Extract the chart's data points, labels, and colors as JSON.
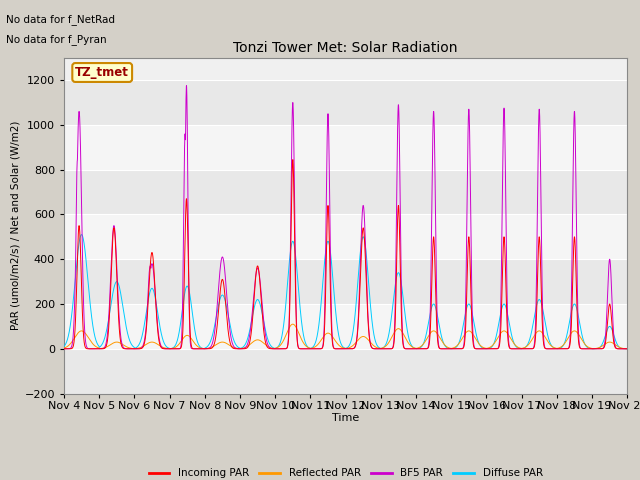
{
  "title": "Tonzi Tower Met: Solar Radiation",
  "xlabel": "Time",
  "ylabel": "PAR (umol/m2/s) / Net and Solar (W/m2)",
  "ylim": [
    -200,
    1300
  ],
  "yticks": [
    -200,
    0,
    200,
    400,
    600,
    800,
    1000,
    1200
  ],
  "annotation_lines": [
    "No data for f_NetRad",
    "No data for f_Pyran"
  ],
  "box_label": "TZ_tmet",
  "legend": [
    "Incoming PAR",
    "Reflected PAR",
    "BF5 PAR",
    "Diffuse PAR"
  ],
  "legend_colors": [
    "#ff0000",
    "#ff9900",
    "#cc00cc",
    "#00ccff"
  ],
  "plot_bg_light": "#f0f0f0",
  "plot_bg_dark": "#e0e0e0",
  "n_days": 16,
  "start_day": 4,
  "bf5_peaks": [
    1060,
    550,
    380,
    1175,
    410,
    360,
    1100,
    1050,
    640,
    1090,
    1060,
    1070,
    1075,
    1070,
    1060,
    400
  ],
  "incoming_peaks": [
    550,
    540,
    430,
    670,
    310,
    370,
    845,
    640,
    540,
    640,
    500,
    500,
    500,
    500,
    500,
    200
  ],
  "diffuse_peaks": [
    510,
    300,
    270,
    280,
    240,
    220,
    480,
    480,
    500,
    340,
    200,
    200,
    200,
    220,
    200,
    100
  ],
  "reflected_peaks": [
    80,
    30,
    30,
    60,
    30,
    40,
    110,
    70,
    55,
    90,
    80,
    80,
    80,
    80,
    80,
    30
  ],
  "bf5_widths": [
    0.07,
    0.09,
    0.1,
    0.04,
    0.12,
    0.12,
    0.05,
    0.05,
    0.08,
    0.05,
    0.05,
    0.05,
    0.05,
    0.05,
    0.05,
    0.06
  ],
  "incoming_widths": [
    0.06,
    0.08,
    0.09,
    0.05,
    0.1,
    0.1,
    0.05,
    0.05,
    0.08,
    0.05,
    0.05,
    0.05,
    0.05,
    0.05,
    0.05,
    0.06
  ],
  "diffuse_widths": [
    0.18,
    0.18,
    0.16,
    0.14,
    0.17,
    0.16,
    0.15,
    0.15,
    0.15,
    0.15,
    0.14,
    0.14,
    0.14,
    0.15,
    0.14,
    0.12
  ],
  "reflected_widths": [
    0.2,
    0.18,
    0.18,
    0.16,
    0.18,
    0.18,
    0.18,
    0.18,
    0.18,
    0.18,
    0.18,
    0.18,
    0.18,
    0.18,
    0.18,
    0.16
  ],
  "bf5_centers": [
    0.43,
    0.42,
    0.5,
    0.48,
    0.5,
    0.5,
    0.5,
    0.5,
    0.5,
    0.5,
    0.5,
    0.5,
    0.5,
    0.5,
    0.5,
    0.5
  ],
  "day_has_secondary_bf5": [
    1,
    0,
    1,
    1,
    0,
    0,
    0,
    0,
    0,
    0,
    0,
    0,
    0,
    0,
    0,
    0
  ],
  "secondary_bf5_peaks": [
    840,
    0,
    370,
    960,
    0,
    0,
    0,
    0,
    0,
    0,
    0,
    0,
    0,
    0,
    0,
    0
  ],
  "secondary_bf5_centers": [
    0.38,
    0,
    0.45,
    0.44,
    0,
    0,
    0,
    0,
    0,
    0,
    0,
    0,
    0,
    0,
    0,
    0
  ],
  "secondary_bf5_widths": [
    0.04,
    0,
    0.07,
    0.04,
    0,
    0,
    0,
    0,
    0,
    0,
    0,
    0,
    0,
    0,
    0,
    0
  ]
}
